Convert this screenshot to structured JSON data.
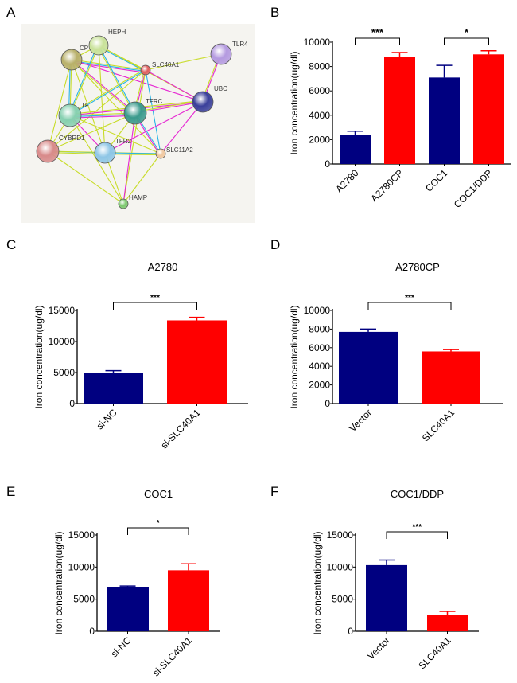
{
  "panels": [
    "A",
    "B",
    "C",
    "D",
    "E",
    "F"
  ],
  "network": {
    "background": "#f5f4f0",
    "nodes": [
      {
        "id": "CP",
        "label": "CP",
        "color": "#b8b06a"
      },
      {
        "id": "HEPH",
        "label": "HEPH",
        "color": "#c9e29a"
      },
      {
        "id": "SLC40A1",
        "label": "SLC40A1",
        "color": "#e06060"
      },
      {
        "id": "TLR4",
        "label": "TLR4",
        "color": "#b49ae0"
      },
      {
        "id": "UBC",
        "label": "UBC",
        "color": "#3a3f9a"
      },
      {
        "id": "TF",
        "label": "TF",
        "color": "#86d0b0"
      },
      {
        "id": "TFRC",
        "label": "TFRC",
        "color": "#3a9a8c"
      },
      {
        "id": "CYBRD1",
        "label": "CYBRD1",
        "color": "#d88a8a"
      },
      {
        "id": "TFR2",
        "label": "TFR2",
        "color": "#8ec6e6"
      },
      {
        "id": "SLC11A2",
        "label": "SLC11A2",
        "color": "#f0c8a0"
      },
      {
        "id": "HAMP",
        "label": "HAMP",
        "color": "#7cc86e"
      }
    ],
    "edge_colors": {
      "textmining": "#c8dc28",
      "database": "#28b4e6",
      "experimental": "#e628d2"
    },
    "edges": [
      [
        "CP",
        "HEPH",
        "textmining"
      ],
      [
        "CP",
        "SLC40A1",
        "textmining"
      ],
      [
        "CP",
        "SLC40A1",
        "database"
      ],
      [
        "CP",
        "SLC40A1",
        "experimental"
      ],
      [
        "CP",
        "TF",
        "textmining"
      ],
      [
        "CP",
        "TF",
        "database"
      ],
      [
        "CP",
        "TFRC",
        "experimental"
      ],
      [
        "CP",
        "TFRC",
        "textmining"
      ],
      [
        "CP",
        "UBC",
        "experimental"
      ],
      [
        "CP",
        "SLC11A2",
        "textmining"
      ],
      [
        "CP",
        "CYBRD1",
        "textmining"
      ],
      [
        "CP",
        "TFR2",
        "textmining"
      ],
      [
        "HEPH",
        "SLC40A1",
        "textmining"
      ],
      [
        "HEPH",
        "SLC40A1",
        "database"
      ],
      [
        "HEPH",
        "TF",
        "textmining"
      ],
      [
        "HEPH",
        "TF",
        "database"
      ],
      [
        "HEPH",
        "TFRC",
        "database"
      ],
      [
        "HEPH",
        "TFRC",
        "textmining"
      ],
      [
        "HEPH",
        "TFR2",
        "textmining"
      ],
      [
        "HEPH",
        "UBC",
        "textmining"
      ],
      [
        "SLC40A1",
        "TLR4",
        "textmining"
      ],
      [
        "SLC40A1",
        "UBC",
        "experimental"
      ],
      [
        "SLC40A1",
        "TF",
        "database"
      ],
      [
        "SLC40A1",
        "TF",
        "textmining"
      ],
      [
        "SLC40A1",
        "TFRC",
        "experimental"
      ],
      [
        "SLC40A1",
        "TFRC",
        "textmining"
      ],
      [
        "SLC40A1",
        "SLC11A2",
        "database"
      ],
      [
        "SLC40A1",
        "CYBRD1",
        "textmining"
      ],
      [
        "SLC40A1",
        "HAMP",
        "textmining"
      ],
      [
        "TLR4",
        "UBC",
        "experimental"
      ],
      [
        "TLR4",
        "UBC",
        "textmining"
      ],
      [
        "UBC",
        "TF",
        "experimental"
      ],
      [
        "UBC",
        "TF",
        "textmining"
      ],
      [
        "UBC",
        "TFRC",
        "experimental"
      ],
      [
        "UBC",
        "TFRC",
        "textmining"
      ],
      [
        "UBC",
        "TFR2",
        "experimental"
      ],
      [
        "UBC",
        "SLC11A2",
        "experimental"
      ],
      [
        "TF",
        "TFRC",
        "textmining"
      ],
      [
        "TF",
        "TFRC",
        "database"
      ],
      [
        "TF",
        "TFRC",
        "experimental"
      ],
      [
        "TF",
        "TFR2",
        "experimental"
      ],
      [
        "TF",
        "SLC11A2",
        "textmining"
      ],
      [
        "TF",
        "CYBRD1",
        "textmining"
      ],
      [
        "TF",
        "HAMP",
        "textmining"
      ],
      [
        "TFRC",
        "TFR2",
        "textmining"
      ],
      [
        "TFRC",
        "SLC11A2",
        "database"
      ],
      [
        "TFRC",
        "SLC11A2",
        "experimental"
      ],
      [
        "TFRC",
        "HAMP",
        "experimental"
      ],
      [
        "TFRC",
        "CYBRD1",
        "textmining"
      ],
      [
        "CYBRD1",
        "TFR2",
        "database"
      ],
      [
        "CYBRD1",
        "TFR2",
        "textmining"
      ],
      [
        "CYBRD1",
        "SLC11A2",
        "textmining"
      ],
      [
        "CYBRD1",
        "HAMP",
        "textmining"
      ],
      [
        "TFR2",
        "SLC11A2",
        "database"
      ],
      [
        "TFR2",
        "SLC11A2",
        "textmining"
      ],
      [
        "TFR2",
        "HAMP",
        "textmining"
      ],
      [
        "SLC11A2",
        "HAMP",
        "textmining"
      ]
    ]
  },
  "colors": {
    "blue": "#000080",
    "red": "#ff0000"
  },
  "chart_data": [
    {
      "panel": "B",
      "type": "bar",
      "title": "",
      "ylabel": "Iron concentration(ug/dl)",
      "ylim": [
        0,
        10000
      ],
      "yticks": [
        0,
        2000,
        4000,
        6000,
        8000,
        10000
      ],
      "categories": [
        "A2780",
        "A2780CP",
        "COC1",
        "COC1/DDP"
      ],
      "values": [
        2400,
        8800,
        7100,
        9000
      ],
      "errors": [
        300,
        350,
        1000,
        300
      ],
      "bar_colors": [
        "blue",
        "red",
        "blue",
        "red"
      ],
      "significance": [
        {
          "from": 0,
          "to": 1,
          "label": "***"
        },
        {
          "from": 2,
          "to": 3,
          "label": "*"
        }
      ]
    },
    {
      "panel": "C",
      "type": "bar",
      "title": "A2780",
      "ylabel": "Iron concentration(ug/dl)",
      "ylim": [
        0,
        15000
      ],
      "yticks": [
        0,
        5000,
        10000,
        15000
      ],
      "categories": [
        "si-NC",
        "si-SLC40A1"
      ],
      "values": [
        5000,
        13400
      ],
      "errors": [
        300,
        500
      ],
      "bar_colors": [
        "blue",
        "red"
      ],
      "significance": [
        {
          "from": 0,
          "to": 1,
          "label": "***"
        }
      ]
    },
    {
      "panel": "D",
      "type": "bar",
      "title": "A2780CP",
      "ylabel": "Iron concentration(ug/dl)",
      "ylim": [
        0,
        10000
      ],
      "yticks": [
        0,
        2000,
        4000,
        6000,
        8000,
        10000
      ],
      "categories": [
        "Vector",
        "SLC40A1"
      ],
      "values": [
        7700,
        5600
      ],
      "errors": [
        300,
        200
      ],
      "bar_colors": [
        "blue",
        "red"
      ],
      "significance": [
        {
          "from": 0,
          "to": 1,
          "label": "***"
        }
      ]
    },
    {
      "panel": "E",
      "type": "bar",
      "title": "COC1",
      "ylabel": "Iron concentration(ug/dl)",
      "ylim": [
        0,
        15000
      ],
      "yticks": [
        0,
        5000,
        10000,
        15000
      ],
      "categories": [
        "si-NC",
        "si-SLC40A1"
      ],
      "values": [
        6900,
        9500
      ],
      "errors": [
        150,
        1000
      ],
      "bar_colors": [
        "blue",
        "red"
      ],
      "significance": [
        {
          "from": 0,
          "to": 1,
          "label": "*"
        }
      ]
    },
    {
      "panel": "F",
      "type": "bar",
      "title": "COC1/DDP",
      "ylabel": "Iron concentration(ug/dl)",
      "ylim": [
        0,
        15000
      ],
      "yticks": [
        0,
        5000,
        10000,
        15000
      ],
      "categories": [
        "Vector",
        "SLC40A1"
      ],
      "values": [
        10300,
        2600
      ],
      "errors": [
        800,
        500
      ],
      "bar_colors": [
        "blue",
        "red"
      ],
      "significance": [
        {
          "from": 0,
          "to": 1,
          "label": "***"
        }
      ]
    }
  ]
}
